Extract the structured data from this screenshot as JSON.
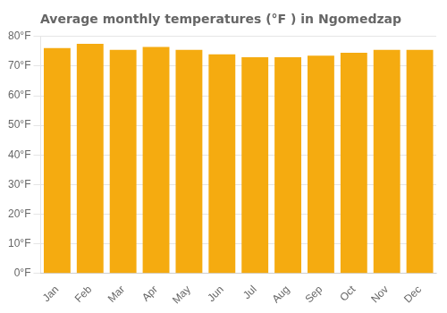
{
  "chart_data": {
    "type": "bar",
    "title": "Average monthly temperatures (°F ) in Ngomedzap",
    "categories": [
      "Jan",
      "Feb",
      "Mar",
      "Apr",
      "May",
      "Jun",
      "Jul",
      "Aug",
      "Sep",
      "Oct",
      "Nov",
      "Dec"
    ],
    "values": [
      76.1,
      77.5,
      75.5,
      76.5,
      75.5,
      74.0,
      73.0,
      73.0,
      73.5,
      74.5,
      75.5,
      75.5
    ],
    "color": "#F5AB10",
    "ylim": [
      0,
      80
    ],
    "yticks": [
      {
        "value": 0,
        "label": "0°F"
      },
      {
        "value": 10,
        "label": "10°F"
      },
      {
        "value": 20,
        "label": "20°F"
      },
      {
        "value": 30,
        "label": "30°F"
      },
      {
        "value": 40,
        "label": "40°F"
      },
      {
        "value": 50,
        "label": "50°F"
      },
      {
        "value": 60,
        "label": "60°F"
      },
      {
        "value": 70,
        "label": "70°F"
      },
      {
        "value": 80,
        "label": "80°F"
      }
    ],
    "grid": true
  }
}
